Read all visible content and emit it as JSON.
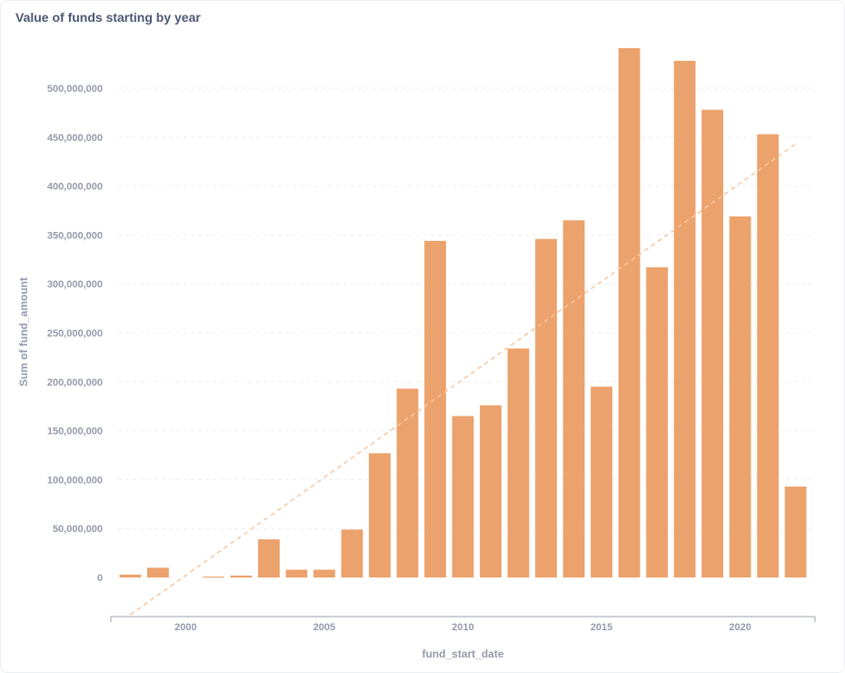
{
  "title": "Value of funds starting by year",
  "chart_data": {
    "type": "bar",
    "xlabel": "fund_start_date",
    "ylabel": "Sum of fund_amount",
    "ylim": [
      -40000000,
      540000000
    ],
    "xlim": [
      1997.3,
      2022.7
    ],
    "y_ticks": [
      0,
      50000000,
      100000000,
      150000000,
      200000000,
      250000000,
      300000000,
      350000000,
      400000000,
      450000000,
      500000000
    ],
    "y_tick_labels": [
      "0",
      "50,000,000",
      "100,000,000",
      "150,000,000",
      "200,000,000",
      "250,000,000",
      "300,000,000",
      "350,000,000",
      "400,000,000",
      "450,000,000",
      "500,000,000"
    ],
    "x_ticks": [
      2000,
      2005,
      2010,
      2015,
      2020
    ],
    "x_tick_labels": [
      "2000",
      "2005",
      "2010",
      "2015",
      "2020"
    ],
    "bar_color": "#eca26c",
    "trend_color": "#f7c7a0",
    "grid": true,
    "data": [
      {
        "x": 1998,
        "y": 3000000
      },
      {
        "x": 1999,
        "y": 10000000
      },
      {
        "x": 2001,
        "y": 1000000
      },
      {
        "x": 2002,
        "y": 2000000
      },
      {
        "x": 2003,
        "y": 39000000
      },
      {
        "x": 2004,
        "y": 8000000
      },
      {
        "x": 2005,
        "y": 8000000
      },
      {
        "x": 2006,
        "y": 49000000
      },
      {
        "x": 2007,
        "y": 127000000
      },
      {
        "x": 2008,
        "y": 193000000
      },
      {
        "x": 2009,
        "y": 344000000
      },
      {
        "x": 2010,
        "y": 165000000
      },
      {
        "x": 2011,
        "y": 176000000
      },
      {
        "x": 2012,
        "y": 234000000
      },
      {
        "x": 2013,
        "y": 346000000
      },
      {
        "x": 2014,
        "y": 365000000
      },
      {
        "x": 2015,
        "y": 195000000
      },
      {
        "x": 2016,
        "y": 541000000
      },
      {
        "x": 2017,
        "y": 317000000
      },
      {
        "x": 2018,
        "y": 528000000
      },
      {
        "x": 2019,
        "y": 478000000
      },
      {
        "x": 2020,
        "y": 369000000
      },
      {
        "x": 2021,
        "y": 453000000
      },
      {
        "x": 2022,
        "y": 93000000
      }
    ],
    "trendline": [
      {
        "x": 1998,
        "y": -38000000
      },
      {
        "x": 2022,
        "y": 443000000
      }
    ]
  }
}
